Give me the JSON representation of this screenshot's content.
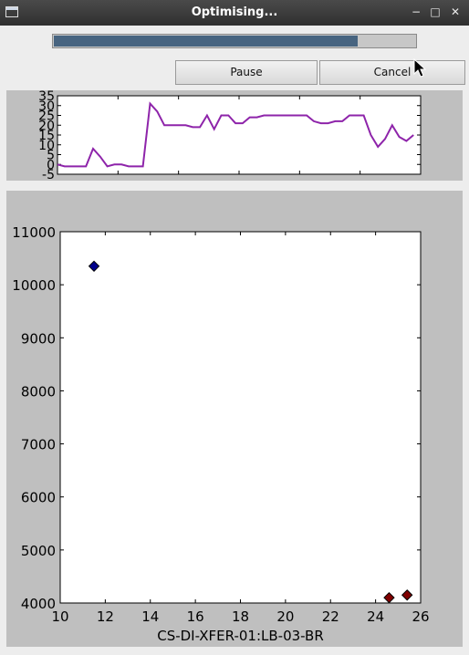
{
  "window": {
    "title": "Optimising...",
    "minimize_icon": "minimize-icon",
    "maximize_icon": "maximize-icon",
    "close_icon": "close-icon"
  },
  "progress": {
    "value": 0.84,
    "color": "#476480"
  },
  "buttons": {
    "pause_label": "Pause",
    "cancel_label": "Cancel"
  },
  "chart_data": [
    {
      "type": "line",
      "title": "",
      "xlabel": "",
      "ylabel": "",
      "xlim": [
        0,
        51
      ],
      "ylim": [
        -5,
        35
      ],
      "yticks": [
        "-5",
        "0",
        "5",
        "10",
        "15",
        "20",
        "25",
        "30",
        "35"
      ],
      "grid": false,
      "series": [
        {
          "color": "#8e24aa",
          "x": [
            0,
            1,
            2,
            3,
            4,
            5,
            6,
            7,
            8,
            9,
            10,
            11,
            12,
            13,
            14,
            15,
            16,
            17,
            18,
            19,
            20,
            21,
            22,
            23,
            24,
            25,
            26,
            27,
            28,
            29,
            30,
            31,
            32,
            33,
            34,
            35,
            36,
            37,
            38,
            39,
            40,
            41,
            42,
            43,
            44,
            45,
            46,
            47,
            48,
            49,
            50
          ],
          "y": [
            0,
            -1,
            -1,
            -1,
            -1,
            8,
            4,
            -1,
            0,
            0,
            -1,
            -1,
            -1,
            31,
            27,
            20,
            20,
            20,
            20,
            19,
            19,
            25,
            18,
            25,
            25,
            21,
            21,
            24,
            24,
            25,
            25,
            25,
            25,
            25,
            25,
            25,
            22,
            21,
            21,
            22,
            22,
            25,
            25,
            25,
            15,
            9,
            13,
            20,
            14,
            12,
            15
          ]
        }
      ]
    },
    {
      "type": "scatter",
      "title": "",
      "xlabel": "CS-DI-XFER-01:LB-03-BR",
      "ylabel": "",
      "xlim": [
        10,
        26
      ],
      "ylim": [
        4000,
        11000
      ],
      "xticks": [
        "10",
        "12",
        "14",
        "16",
        "18",
        "20",
        "22",
        "24",
        "26"
      ],
      "yticks": [
        "4000",
        "5000",
        "6000",
        "7000",
        "8000",
        "9000",
        "10000",
        "11000"
      ],
      "grid": false,
      "series": [
        {
          "color": "#00008b",
          "points": [
            [
              11.5,
              10350
            ]
          ]
        },
        {
          "color": "#7f0000",
          "points": [
            [
              24.6,
              4100
            ],
            [
              25.4,
              4150
            ]
          ]
        }
      ]
    }
  ]
}
